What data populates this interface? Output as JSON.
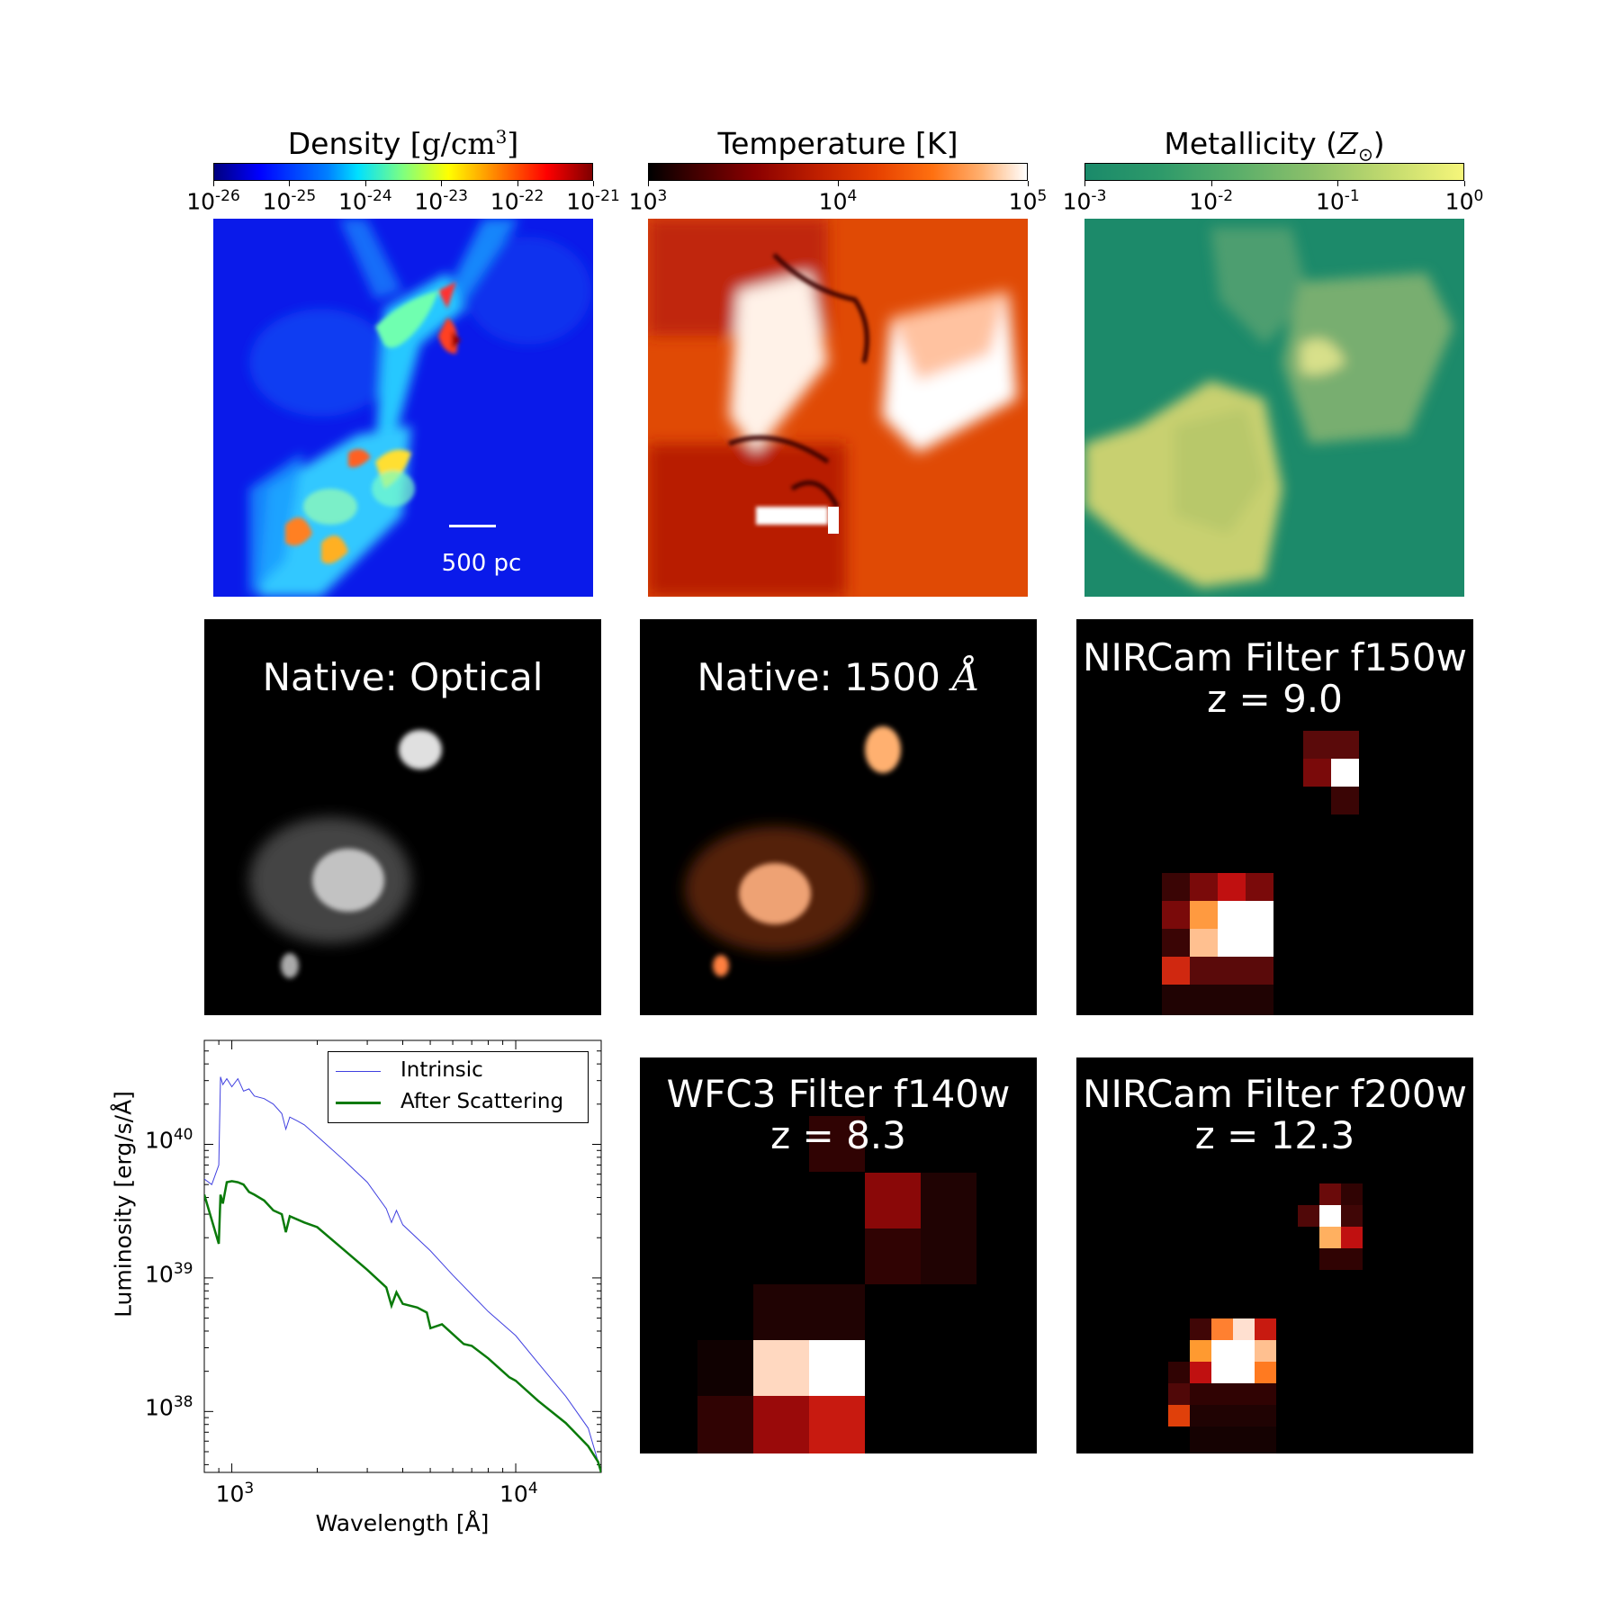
{
  "colorbars": {
    "density": {
      "title_main": "Density ",
      "title_unit": "[g/cm",
      "title_exp": "3",
      "title_close": "]",
      "ticks": [
        {
          "base": "10",
          "exp": "-26"
        },
        {
          "base": "10",
          "exp": "-25"
        },
        {
          "base": "10",
          "exp": "-24"
        },
        {
          "base": "10",
          "exp": "-23"
        },
        {
          "base": "10",
          "exp": "-22"
        },
        {
          "base": "10",
          "exp": "-21"
        }
      ]
    },
    "temperature": {
      "title": "Temperature [K]",
      "ticks": [
        {
          "base": "10",
          "exp": "3"
        },
        {
          "base": "10",
          "exp": "4"
        },
        {
          "base": "10",
          "exp": "5"
        }
      ]
    },
    "metallicity": {
      "title_main": "Metallicity (",
      "title_sym": "Z",
      "title_sub": "⊙",
      "title_close": ")",
      "ticks": [
        {
          "base": "10",
          "exp": "-3"
        },
        {
          "base": "10",
          "exp": "-2"
        },
        {
          "base": "10",
          "exp": "-1"
        },
        {
          "base": "10",
          "exp": "0"
        }
      ]
    }
  },
  "scalebar": {
    "label": "500 pc"
  },
  "panels": {
    "optical": {
      "title": "Native: Optical"
    },
    "uv": {
      "title_prefix": "Native: 1500 ",
      "title_unit": "Å"
    },
    "f150w": {
      "title_line1": "NIRCam Filter f150w",
      "title_line2": "z = 9.0"
    },
    "f140w": {
      "title_line1": "WFC3 Filter f140w",
      "title_line2": "z = 8.3"
    },
    "f200w": {
      "title_line1": "NIRCam Filter f200w",
      "title_line2": "z = 12.3"
    }
  },
  "chart_data": {
    "type": "line",
    "xlabel": "Wavelength [Å]",
    "ylabel": "Luminosity [erg/s/Å]",
    "xscale": "log",
    "yscale": "log",
    "xlim": [
      800,
      20000
    ],
    "ylim": [
      3.5e+37,
      6e+40
    ],
    "xticks": [
      {
        "base": "10",
        "exp": "3"
      },
      {
        "base": "10",
        "exp": "4"
      }
    ],
    "yticks": [
      {
        "base": "10",
        "exp": "38"
      },
      {
        "base": "10",
        "exp": "39"
      },
      {
        "base": "10",
        "exp": "40"
      }
    ],
    "legend_position": "top-right",
    "series": [
      {
        "name": "Intrinsic",
        "color": "#4040e0",
        "x": [
          800,
          850,
          900,
          912,
          930,
          960,
          1000,
          1050,
          1100,
          1150,
          1200,
          1300,
          1400,
          1500,
          1550,
          1600,
          1700,
          1800,
          2000,
          2500,
          3000,
          3500,
          3650,
          3800,
          4000,
          5000,
          6000,
          7000,
          8000,
          10000,
          12000,
          15000,
          18000,
          20000
        ],
        "y": [
          5.5e+39,
          5e+39,
          7e+39,
          3.2e+40,
          2.8e+40,
          3.1e+40,
          2.7e+40,
          3.1e+40,
          2.5e+40,
          2.6e+40,
          2.3e+40,
          2.2e+40,
          2e+40,
          1.7e+40,
          1.3e+40,
          1.6e+40,
          1.5e+40,
          1.4e+40,
          1.15e+40,
          7.5e+39,
          5.2e+39,
          3.3e+39,
          2.6e+39,
          3.2e+39,
          2.5e+39,
          1.6e+39,
          1.05e+39,
          7.5e+38,
          5.6e+38,
          3.7e+38,
          2.3e+38,
          1.3e+38,
          7.5e+37,
          3.5e+37
        ]
      },
      {
        "name": "After Scattering",
        "color": "#0a7a0a",
        "x": [
          800,
          900,
          912,
          930,
          960,
          1000,
          1050,
          1100,
          1150,
          1200,
          1300,
          1400,
          1500,
          1550,
          1600,
          1800,
          2000,
          2500,
          3000,
          3500,
          3650,
          3800,
          4000,
          4500,
          4861,
          5007,
          5500,
          6563,
          7000,
          8000,
          9500,
          10000,
          12000,
          15000,
          18000,
          19500,
          20000
        ],
        "y": [
          4.2e+39,
          1.8e+39,
          4.2e+39,
          3.6e+39,
          5.2e+39,
          5.3e+39,
          5.2e+39,
          5e+39,
          4.4e+39,
          4.2e+39,
          3.8e+39,
          3.2e+39,
          3e+39,
          2.2e+39,
          2.9e+39,
          2.6e+39,
          2.4e+39,
          1.6e+39,
          1.15e+39,
          8.5e+38,
          6.2e+38,
          7.8e+38,
          6.4e+38,
          6e+38,
          5.5e+38,
          4.2e+38,
          4.5e+38,
          3.2e+38,
          3.1e+38,
          2.5e+38,
          1.8e+38,
          1.7e+38,
          1.2e+38,
          8.2e+37,
          5.5e+37,
          4.2e+37,
          3.5e+37
        ]
      }
    ]
  }
}
